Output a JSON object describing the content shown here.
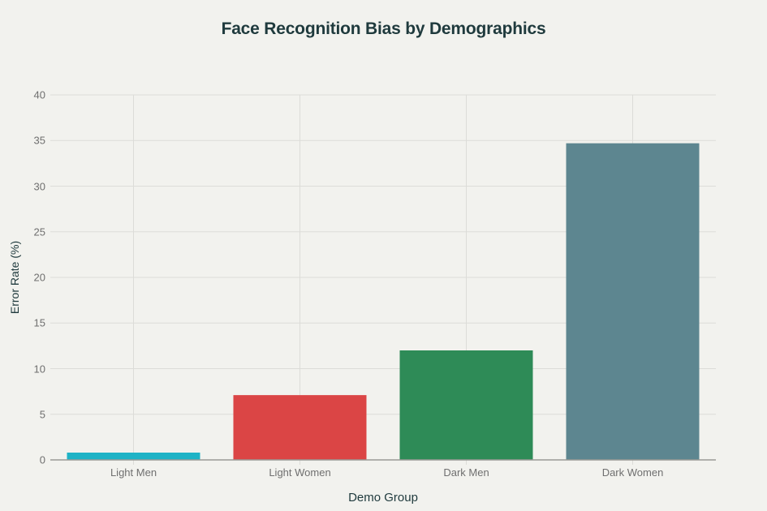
{
  "chart_data": {
    "type": "bar",
    "title": "Face Recognition Bias by Demographics",
    "xlabel": "Demo Group",
    "ylabel": "Error Rate (%)",
    "categories": [
      "Light Men",
      "Light Women",
      "Dark Men",
      "Dark Women"
    ],
    "values": [
      0.8,
      7.1,
      12.0,
      34.7
    ],
    "colors": [
      "#1fb3c6",
      "#db4545",
      "#2e8b57",
      "#5d8690"
    ],
    "ylim": [
      0,
      40
    ],
    "yticks": [
      0,
      5,
      10,
      15,
      20,
      25,
      30,
      35,
      40
    ],
    "grid": true,
    "legend": null
  },
  "labels": {
    "title": "Face Recognition Bias by Demographics",
    "xlabel": "Demo Group",
    "ylabel": "Error Rate (%)"
  }
}
